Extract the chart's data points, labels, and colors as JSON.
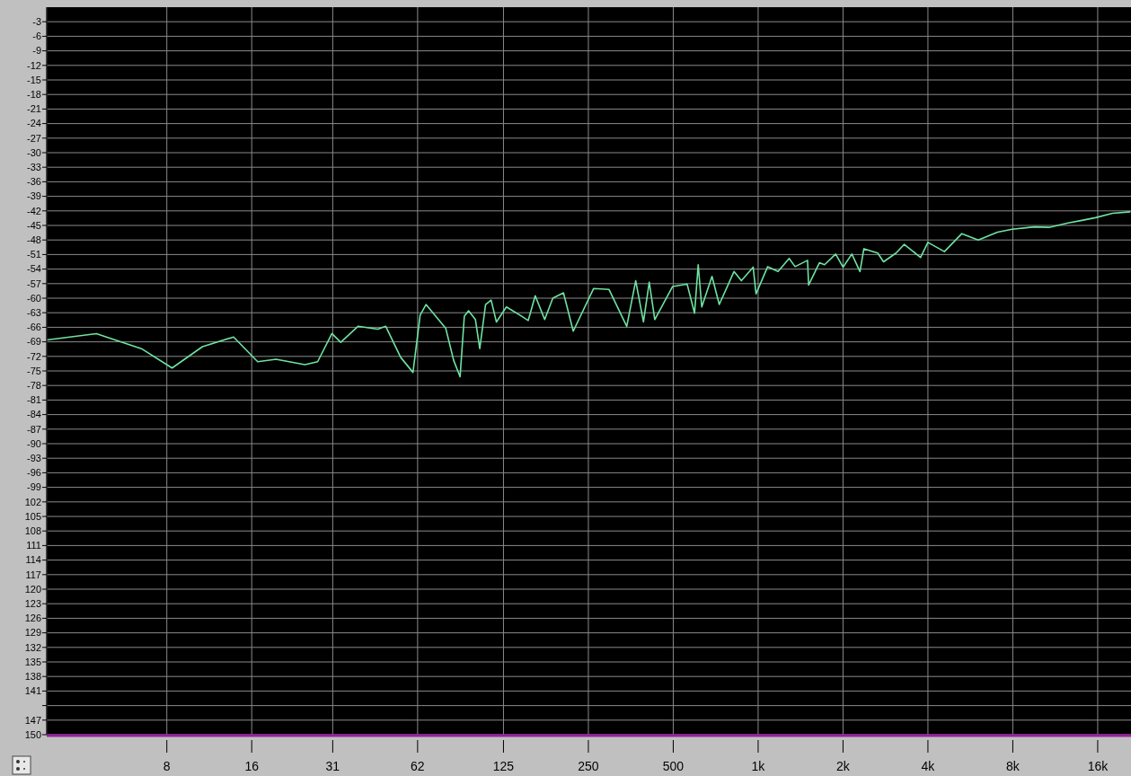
{
  "chart_data": {
    "type": "line",
    "log": "x",
    "grid": true,
    "marker": "none",
    "line_style": "solid",
    "xlim": [
      3,
      21000
    ],
    "xticks": [
      8,
      16,
      31,
      62,
      125,
      250,
      500,
      {
        "value": 1000,
        "label": "1k"
      },
      {
        "value": 2000,
        "label": "2k"
      },
      {
        "value": 4000,
        "label": "4k"
      },
      {
        "value": 8000,
        "label": "8k"
      },
      {
        "value": 16000,
        "label": "16k"
      }
    ],
    "ylim": [
      -150,
      0
    ],
    "yticks": [
      -3,
      -6,
      -9,
      -12,
      -15,
      -18,
      -21,
      -24,
      -27,
      -30,
      -33,
      -36,
      -39,
      -42,
      -45,
      -48,
      -51,
      -54,
      -57,
      -60,
      -63,
      -66,
      -69,
      -72,
      -75,
      -78,
      -81,
      -84,
      -87,
      -90,
      -93,
      -96,
      -99,
      {
        "value": -102,
        "label": "102"
      },
      {
        "value": -105,
        "label": "105"
      },
      {
        "value": -108,
        "label": "108"
      },
      {
        "value": -111,
        "label": "111"
      },
      {
        "value": -114,
        "label": "114"
      },
      {
        "value": -117,
        "label": "117"
      },
      {
        "value": -120,
        "label": "120"
      },
      {
        "value": -123,
        "label": "123"
      },
      {
        "value": -126,
        "label": "126"
      },
      {
        "value": -129,
        "label": "129"
      },
      {
        "value": -132,
        "label": "132"
      },
      {
        "value": -135,
        "label": "135"
      },
      {
        "value": -138,
        "label": "138"
      },
      {
        "value": -141,
        "label": "141"
      },
      {
        "value": -144,
        "label": null
      },
      {
        "value": -147,
        "label": "147"
      },
      {
        "value": -150,
        "label": "150"
      }
    ],
    "series": [
      {
        "color": "#6ee3a0",
        "x": [
          3,
          4.5,
          6.5,
          8.35,
          10.7,
          13.8,
          16.8,
          19.5,
          24.7,
          27.4,
          30.8,
          33.1,
          38.1,
          44.8,
          47.8,
          54,
          59.7,
          63.3,
          66.4,
          78,
          83.2,
          87.7,
          90.8,
          94,
          99.4,
          103,
          108,
          113,
          118,
          128,
          143,
          153,
          162,
          175,
          187,
          204,
          221,
          261,
          296,
          342,
          368,
          392,
          411,
          430,
          497,
          560,
          595,
          613,
          631,
          686,
          728,
          821,
          872,
          960,
          983,
          1081,
          1177,
          1288,
          1352,
          1497,
          1510,
          1649,
          1720,
          1883,
          2000,
          2149,
          2297,
          2371,
          2655,
          2784,
          3084,
          3298,
          3766,
          4000,
          4576,
          5276,
          6035,
          7060,
          7953,
          9530,
          10740,
          12560,
          13930,
          15710,
          18040,
          20800
        ],
        "values": [
          -68.6,
          -67.3,
          -70.4,
          -74.4,
          -70,
          -68,
          -73.1,
          -72.6,
          -73.7,
          -73.1,
          -67.3,
          -69.1,
          -65.8,
          -66.4,
          -65.8,
          -72.2,
          -75.3,
          -63.5,
          -61.3,
          -66.2,
          -72.8,
          -76.2,
          -63.7,
          -62.6,
          -64.4,
          -70.4,
          -61.3,
          -60.4,
          -64.9,
          -61.8,
          -63.5,
          -64.6,
          -59.5,
          -64.4,
          -60,
          -58.9,
          -66.8,
          -58,
          -58.2,
          -65.8,
          -56.4,
          -64.9,
          -56.7,
          -64.4,
          -57.6,
          -57.1,
          -63.1,
          -53.1,
          -61.8,
          -55.5,
          -61.3,
          -54.5,
          -56.4,
          -53.6,
          -59.1,
          -53.5,
          -54.5,
          -51.8,
          -53.5,
          -52.2,
          -57.3,
          -52.7,
          -53.1,
          -50.9,
          -53.6,
          -50.9,
          -54.5,
          -49.8,
          -50.7,
          -52.5,
          -50.7,
          -48.9,
          -51.6,
          -48.5,
          -50.4,
          -46.7,
          -48,
          -46.4,
          -45.8,
          -45.3,
          -45.4,
          -44.5,
          -44,
          -43.4,
          -42.5,
          -42.2
        ]
      }
    ]
  }
}
